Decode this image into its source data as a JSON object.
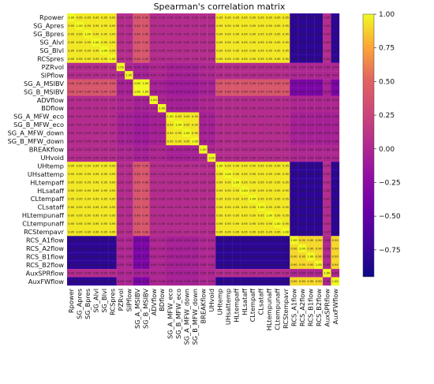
{
  "chart_data": {
    "type": "heatmap",
    "title": "Spearman's correlation matrix",
    "variables": [
      "Rpower",
      "SG_Apres",
      "SG_Bpres",
      "SG_Alvl",
      "SG_Blvl",
      "RCSpres",
      "PZRvol",
      "SIPflow",
      "SG_A_MSIBV",
      "SG_B_MSIBV",
      "ADVflow",
      "BDflow",
      "SG_A_MFW_eco",
      "SG_B_MFW_eco",
      "SG_A_MFW_down",
      "SG_B_MFW_down",
      "BREAKflow",
      "UHvoid",
      "UHtemp",
      "UHsattemp",
      "HLtempaff",
      "HLsataff",
      "CLtempaff",
      "CLsataff",
      "HLtempunaff",
      "CLtempunaff",
      "RCStempavr",
      "RCS_A1flow",
      "RCS_A2flow",
      "RCS_B1flow",
      "RCS_B2flow",
      "AuxSPRflow",
      "AuxFWflow"
    ],
    "groups": {
      "G1": [
        "Rpower",
        "SG_Apres",
        "SG_Bpres",
        "SG_Alvl",
        "SG_Blvl",
        "RCSpres",
        "UHtemp",
        "UHsattemp",
        "HLtempaff",
        "HLsataff",
        "CLtempaff",
        "CLsataff",
        "HLtempunaff",
        "CLtempunaff",
        "RCStempavr"
      ],
      "G2": [
        "RCS_A1flow",
        "RCS_A2flow",
        "RCS_B1flow",
        "RCS_B2flow",
        "AuxFWflow"
      ],
      "G3": [
        "SG_A_MSIBV",
        "SG_B_MSIBV"
      ],
      "G4": [
        "SG_A_MFW_eco",
        "SG_B_MFW_eco",
        "SG_A_MFW_down",
        "SG_B_MFW_down"
      ],
      "G5": [
        "PZRvol",
        "SIPflow",
        "ADVflow",
        "BDflow",
        "BREAKflow",
        "UHvoid",
        "AuxSPRflow"
      ]
    },
    "group_correlation": {
      "G1_G1": 0.95,
      "G1_G2": -0.8,
      "G1_G3": 0.4,
      "G1_G4": 0.05,
      "G1_G5": 0.05,
      "G2_G2": 0.9,
      "G2_G3": -0.35,
      "G2_G4": -0.05,
      "G2_G5": 0.0,
      "G3_G3": 1.0,
      "G3_G4": -0.1,
      "G3_G5": -0.05,
      "G4_G4": 0.95,
      "G4_G5": -0.05,
      "G5_G5": 0.0
    },
    "diagonal": 1.0,
    "colorscale": "plasma",
    "colorbar": {
      "min": -0.95,
      "max": 1.0,
      "ticks": [
        1.0,
        0.75,
        0.5,
        0.25,
        0.0,
        -0.25,
        -0.5,
        -0.75
      ],
      "tick_labels": [
        "1.00",
        "0.75",
        "0.50",
        "0.25",
        "0.00",
        "−0.25",
        "−0.50",
        "−0.75"
      ]
    },
    "annotated": true
  }
}
